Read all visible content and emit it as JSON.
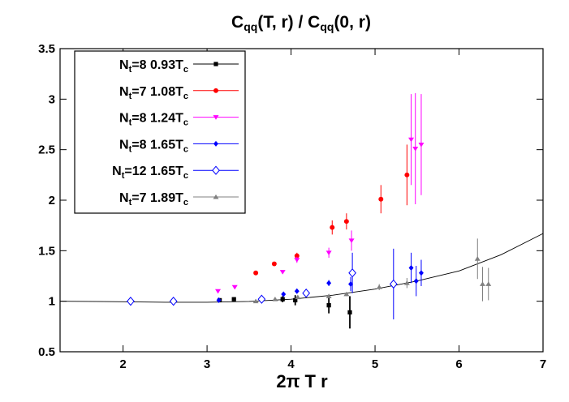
{
  "chart_data": {
    "type": "scatter",
    "title": {
      "parts": [
        {
          "text": "C",
          "sub": false
        },
        {
          "text": "qq",
          "sub": true
        },
        {
          "text": "(T, r) / C",
          "sub": false
        },
        {
          "text": "qq",
          "sub": true
        },
        {
          "text": "(0, r)",
          "sub": false
        }
      ]
    },
    "xlabel": "2π T r",
    "ylabel": "",
    "xlim": [
      1.25,
      7
    ],
    "ylim": [
      0.5,
      3.5
    ],
    "xticks": [
      2,
      3,
      4,
      5,
      6,
      7
    ],
    "xtick_labels": [
      "2",
      "3",
      "4",
      "5",
      "6",
      "7"
    ],
    "yticks": [
      0.5,
      1,
      1.5,
      2,
      2.5,
      3,
      3.5
    ],
    "ytick_labels": [
      "0.5",
      "1",
      "1.5",
      "2",
      "2.5",
      "3",
      "3.5"
    ],
    "grid": false,
    "legend_position": "top-left",
    "fit_curve": {
      "x": [
        1.25,
        2.0,
        2.5,
        3.0,
        3.5,
        4.0,
        4.5,
        5.0,
        5.5,
        6.0,
        6.5,
        7.0
      ],
      "y": [
        1.0,
        0.995,
        0.99,
        0.99,
        0.998,
        1.02,
        1.06,
        1.12,
        1.2,
        1.3,
        1.46,
        1.67
      ]
    },
    "series": [
      {
        "label_parts": [
          {
            "text": "N",
            "sub": false
          },
          {
            "text": "t",
            "sub": true
          },
          {
            "text": "=8  0.93T",
            "sub": false
          },
          {
            "text": "c",
            "sub": true
          }
        ],
        "color": "#000000",
        "marker": "square-filled",
        "points": [
          {
            "x": 3.15,
            "y": 1.01,
            "err": 0.02
          },
          {
            "x": 3.32,
            "y": 1.02,
            "err": 0.02
          },
          {
            "x": 3.9,
            "y": 1.02,
            "err": 0.03
          },
          {
            "x": 4.05,
            "y": 1.01,
            "err": 0.05
          },
          {
            "x": 4.45,
            "y": 0.96,
            "err": 0.08
          },
          {
            "x": 4.7,
            "y": 0.89,
            "err": 0.16
          }
        ]
      },
      {
        "label_parts": [
          {
            "text": "N",
            "sub": false
          },
          {
            "text": "t",
            "sub": true
          },
          {
            "text": "=7  1.08T",
            "sub": false
          },
          {
            "text": "c",
            "sub": true
          }
        ],
        "color": "#ff0000",
        "marker": "circle-filled",
        "points": [
          {
            "x": 3.58,
            "y": 1.28,
            "err": 0.02
          },
          {
            "x": 3.8,
            "y": 1.37,
            "err": 0.02
          },
          {
            "x": 4.07,
            "y": 1.45,
            "err": 0.03
          },
          {
            "x": 4.49,
            "y": 1.73,
            "err": 0.07
          },
          {
            "x": 4.66,
            "y": 1.79,
            "err": 0.08
          },
          {
            "x": 5.07,
            "y": 2.01,
            "err": 0.14
          },
          {
            "x": 5.38,
            "y": 2.25,
            "err": 0.3
          }
        ]
      },
      {
        "label_parts": [
          {
            "text": "N",
            "sub": false
          },
          {
            "text": "t",
            "sub": true
          },
          {
            "text": "=8  1.24T",
            "sub": false
          },
          {
            "text": "c",
            "sub": true
          }
        ],
        "color": "#ff00ff",
        "marker": "triangle-down-filled",
        "points": [
          {
            "x": 3.13,
            "y": 1.1,
            "err": 0.015
          },
          {
            "x": 3.33,
            "y": 1.14,
            "err": 0.015
          },
          {
            "x": 3.9,
            "y": 1.29,
            "err": 0.02
          },
          {
            "x": 4.07,
            "y": 1.41,
            "err": 0.03
          },
          {
            "x": 4.45,
            "y": 1.48,
            "err": 0.05
          },
          {
            "x": 4.72,
            "y": 1.6,
            "err": 0.1
          },
          {
            "x": 5.43,
            "y": 2.6,
            "err": 0.45
          },
          {
            "x": 5.48,
            "y": 2.51,
            "err": 0.55
          },
          {
            "x": 5.55,
            "y": 2.55,
            "err": 0.5
          }
        ]
      },
      {
        "label_parts": [
          {
            "text": "N",
            "sub": false
          },
          {
            "text": "t",
            "sub": true
          },
          {
            "text": "=8  1.65T",
            "sub": false
          },
          {
            "text": "c",
            "sub": true
          }
        ],
        "color": "#0000ff",
        "marker": "diamond-filled",
        "points": [
          {
            "x": 3.14,
            "y": 1.01,
            "err": 0.015
          },
          {
            "x": 3.91,
            "y": 1.07,
            "err": 0.015
          },
          {
            "x": 4.07,
            "y": 1.1,
            "err": 0.02
          },
          {
            "x": 4.45,
            "y": 1.18,
            "err": 0.03
          },
          {
            "x": 4.71,
            "y": 1.17,
            "err": 0.07
          },
          {
            "x": 5.43,
            "y": 1.33,
            "err": 0.15
          },
          {
            "x": 5.49,
            "y": 1.2,
            "err": 0.15
          },
          {
            "x": 5.55,
            "y": 1.28,
            "err": 0.13
          }
        ]
      },
      {
        "label_parts": [
          {
            "text": "N",
            "sub": false
          },
          {
            "text": "t",
            "sub": true
          },
          {
            "text": "=12  1.65T",
            "sub": false
          },
          {
            "text": "c",
            "sub": true
          }
        ],
        "color": "#0000ff",
        "marker": "diamond-open",
        "points": [
          {
            "x": 2.09,
            "y": 1.0,
            "err": 0.005
          },
          {
            "x": 2.6,
            "y": 1.0,
            "err": 0.005
          },
          {
            "x": 3.65,
            "y": 1.02,
            "err": 0.01
          },
          {
            "x": 4.18,
            "y": 1.08,
            "err": 0.04
          },
          {
            "x": 4.73,
            "y": 1.28,
            "err": 0.2
          },
          {
            "x": 5.22,
            "y": 1.17,
            "err": 0.35
          }
        ]
      },
      {
        "label_parts": [
          {
            "text": "N",
            "sub": false
          },
          {
            "text": "t",
            "sub": true
          },
          {
            "text": "=7  1.89T",
            "sub": false
          },
          {
            "text": "c",
            "sub": true
          }
        ],
        "color": "#808080",
        "marker": "triangle-up-filled",
        "points": [
          {
            "x": 3.58,
            "y": 1.0,
            "err": 0.01
          },
          {
            "x": 3.81,
            "y": 1.02,
            "err": 0.01
          },
          {
            "x": 4.08,
            "y": 1.04,
            "err": 0.01
          },
          {
            "x": 4.45,
            "y": 1.05,
            "err": 0.015
          },
          {
            "x": 4.66,
            "y": 1.07,
            "err": 0.02
          },
          {
            "x": 5.05,
            "y": 1.14,
            "err": 0.03
          },
          {
            "x": 5.38,
            "y": 1.18,
            "err": 0.05
          },
          {
            "x": 6.22,
            "y": 1.42,
            "err": 0.2
          },
          {
            "x": 6.28,
            "y": 1.17,
            "err": 0.17
          },
          {
            "x": 6.35,
            "y": 1.17,
            "err": 0.16
          }
        ]
      }
    ]
  }
}
